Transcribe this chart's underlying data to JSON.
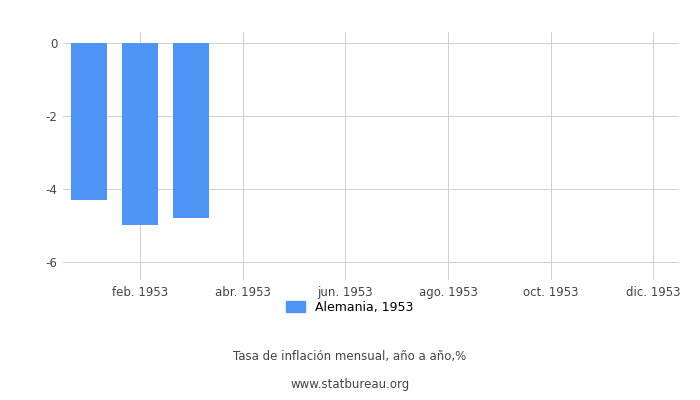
{
  "months": [
    1,
    2,
    3,
    4,
    5,
    6,
    7,
    8,
    9,
    10,
    11,
    12
  ],
  "values": [
    -4.3,
    -5.0,
    -4.8,
    null,
    null,
    null,
    null,
    null,
    null,
    null,
    null,
    null
  ],
  "bar_color": "#4d94f5",
  "ylim": [
    -6.5,
    0.3
  ],
  "yticks": [
    0,
    -2,
    -4,
    -6
  ],
  "legend_label": "Alemania, 1953",
  "footer_line1": "Tasa de inflación mensual, año a año,%",
  "footer_line2": "www.statbureau.org",
  "background_color": "#ffffff",
  "grid_color": "#d0d0d0",
  "tick_label_color": "#444444",
  "bar_width": 0.7,
  "x_tick_positions": [
    2,
    4,
    6,
    8,
    10,
    12
  ],
  "x_tick_labels": [
    "feb. 1953",
    "abr. 1953",
    "jun. 1953",
    "ago. 1953",
    "oct. 1953",
    "dic. 1953"
  ],
  "xlim": [
    0.5,
    12.5
  ]
}
